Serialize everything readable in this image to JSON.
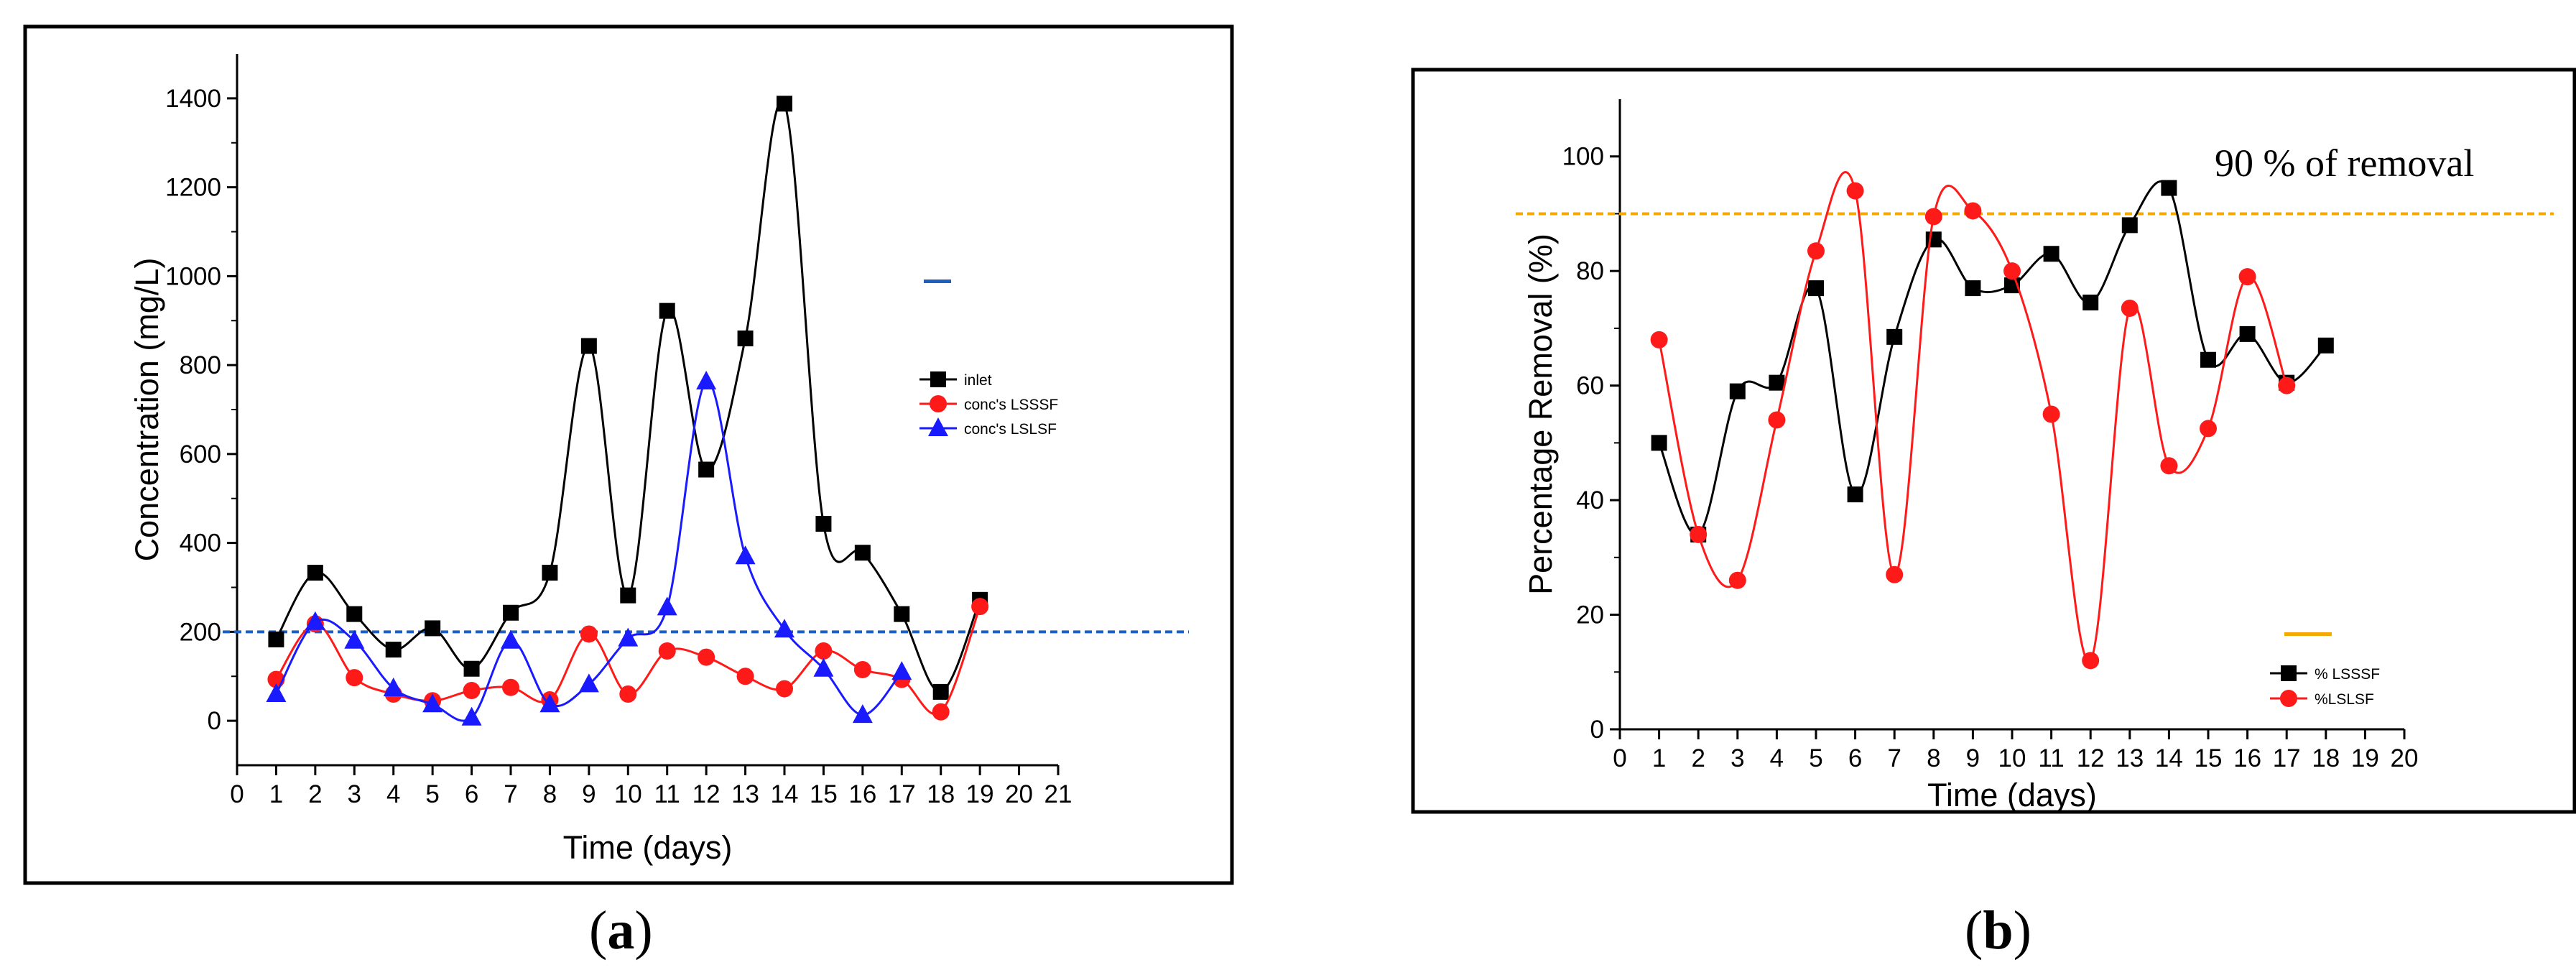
{
  "panels": {
    "a": {
      "label_open": "(",
      "label_letter": "a",
      "label_close": ")"
    },
    "b": {
      "label_open": "(",
      "label_letter": "b",
      "label_close": ")"
    }
  },
  "annotations": {
    "b_threshold_text": "90 % of removal"
  },
  "colors": {
    "black_series": "#000000",
    "red_series": "#ff1a1a",
    "blue_series": "#1a1aff",
    "ref_blue": "#1f5fbf",
    "ref_orange": "#f5a800"
  },
  "chart_data": [
    {
      "id": "a",
      "type": "line",
      "title": "",
      "xlabel": "Time (days)",
      "ylabel": "Concentration (mg/L)",
      "xlim": [
        0,
        21
      ],
      "ylim": [
        -100,
        1500
      ],
      "xticks": [
        0,
        1,
        2,
        3,
        4,
        5,
        6,
        7,
        8,
        9,
        10,
        11,
        12,
        13,
        14,
        15,
        16,
        17,
        18,
        19,
        20,
        21
      ],
      "yticks": [
        0,
        200,
        400,
        600,
        800,
        1000,
        1200,
        1400
      ],
      "legend_position": "right",
      "reference_line": {
        "y": 200,
        "style": "dashed",
        "color": "#1f5fbf"
      },
      "series": [
        {
          "name": "inlet",
          "marker": "square",
          "color": "#000000",
          "x": [
            1,
            2,
            3,
            4,
            5,
            6,
            7,
            8,
            9,
            10,
            11,
            12,
            13,
            14,
            15,
            16,
            17,
            18,
            19
          ],
          "values": [
            183,
            333,
            240,
            160,
            208,
            117,
            243,
            333,
            843,
            282,
            922,
            565,
            860,
            1388,
            443,
            378,
            240,
            65,
            272
          ]
        },
        {
          "name": "conc's LSSSF",
          "marker": "circle",
          "color": "#ff1a1a",
          "x": [
            1,
            2,
            3,
            4,
            5,
            6,
            7,
            8,
            9,
            10,
            11,
            12,
            13,
            14,
            15,
            16,
            17,
            18,
            19
          ],
          "values": [
            93,
            218,
            97,
            60,
            45,
            68,
            75,
            47,
            195,
            60,
            157,
            143,
            100,
            72,
            157,
            115,
            93,
            20,
            257
          ]
        },
        {
          "name": "conc's LSLSF",
          "marker": "triangle",
          "color": "#1a1aff",
          "x": [
            1,
            2,
            3,
            4,
            5,
            6,
            7,
            8,
            9,
            10,
            11,
            12,
            13,
            14,
            15,
            16,
            17
          ],
          "values": [
            60,
            222,
            180,
            73,
            37,
            7,
            180,
            37,
            82,
            185,
            255,
            763,
            370,
            205,
            117,
            13,
            110
          ]
        }
      ]
    },
    {
      "id": "b",
      "type": "line",
      "title": "",
      "xlabel": "Time (days)",
      "ylabel": "Percentage Removal (%)",
      "xlim": [
        0,
        20
      ],
      "ylim": [
        0,
        110
      ],
      "xticks": [
        0,
        1,
        2,
        3,
        4,
        5,
        6,
        7,
        8,
        9,
        10,
        11,
        12,
        13,
        14,
        15,
        16,
        17,
        18,
        19,
        20
      ],
      "yticks": [
        0,
        20,
        40,
        60,
        80,
        100
      ],
      "legend_position": "bottom-right",
      "reference_line": {
        "y": 90,
        "style": "dashed",
        "color": "#f5a800"
      },
      "series": [
        {
          "name": "% LSSSF",
          "marker": "square",
          "color": "#000000",
          "x": [
            1,
            2,
            3,
            4,
            5,
            6,
            7,
            8,
            9,
            10,
            11,
            12,
            13,
            14,
            15,
            16,
            17,
            18
          ],
          "values": [
            50,
            34,
            59,
            60.5,
            77,
            41,
            68.5,
            85.5,
            77,
            77.5,
            83,
            74.5,
            88,
            94.5,
            64.5,
            69,
            60.5,
            67
          ]
        },
        {
          "name": "%LSLSF",
          "marker": "circle",
          "color": "#ff1a1a",
          "x": [
            1,
            2,
            3,
            4,
            5,
            6,
            7,
            8,
            9,
            10,
            11,
            12,
            13,
            14,
            15,
            16,
            17
          ],
          "values": [
            68,
            34,
            26,
            54,
            83.5,
            94,
            27,
            89.5,
            90.5,
            80,
            55,
            12,
            73.5,
            46,
            52.5,
            79,
            60
          ]
        }
      ]
    }
  ]
}
